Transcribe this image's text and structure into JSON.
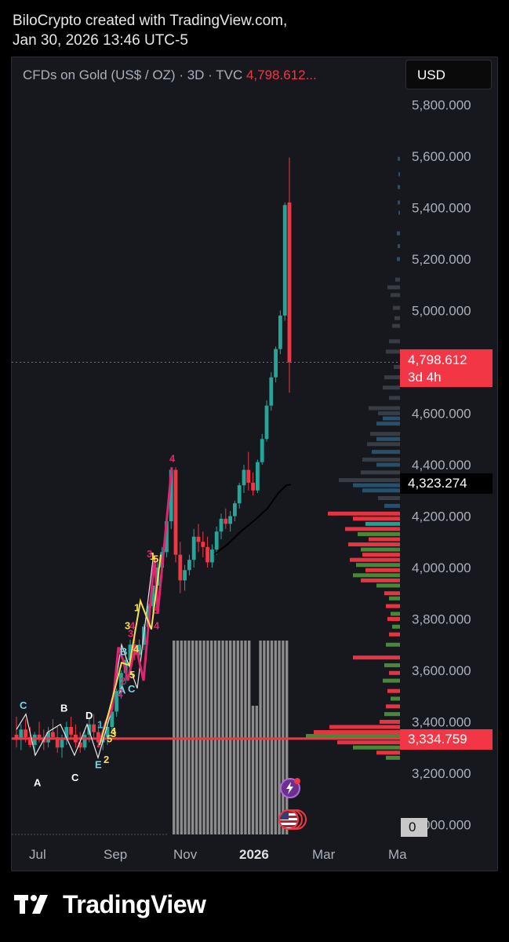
{
  "header": {
    "line1": "BiloCrypto created with TradingView.com,",
    "line2": "Jan 30, 2026 13:46 UTC-5"
  },
  "legend": {
    "symbol": "CFDs on Gold (US$ / OZ) · 3D · TVC",
    "last": "4,798.612..."
  },
  "currency_button": "USD",
  "price_tags": {
    "current_price": "4,798.612",
    "countdown": "3d 4h",
    "ma_value": "4,323.274",
    "poc_value": "3,334.759",
    "volume_zero": "0"
  },
  "footer": {
    "brand": "TradingView"
  },
  "colors": {
    "up": "#26a69a",
    "down": "#f23645",
    "poc": "#f23645",
    "ma": "#000000"
  },
  "chart_data": {
    "type": "candlestick",
    "y_ticks": [
      "5,800.000",
      "5,600.000",
      "5,400.000",
      "5,200.000",
      "5,000.000",
      "4,600.000",
      "4,400.000",
      "4,200.000",
      "4,000.000",
      "3,800.000",
      "3,600.000",
      "3,400.000",
      "3,200.000",
      "3,000.000"
    ],
    "x_ticks": [
      "Jul",
      "Sep",
      "Nov",
      "2026",
      "Mar",
      "Ma"
    ],
    "ylim": [
      3000,
      5850
    ],
    "current_price": 4798.612,
    "ma_last": 4323.274,
    "poc": 3334.759,
    "wave_labels": [
      "C",
      "A",
      "B",
      "C",
      "D",
      "E",
      "1",
      "2",
      "3",
      "4",
      "5",
      "A",
      "B",
      "C",
      "1",
      "2",
      "3",
      "4",
      "5",
      "1",
      "2",
      "3",
      "4",
      "5",
      "4",
      "3",
      "5",
      "4",
      "5"
    ]
  }
}
